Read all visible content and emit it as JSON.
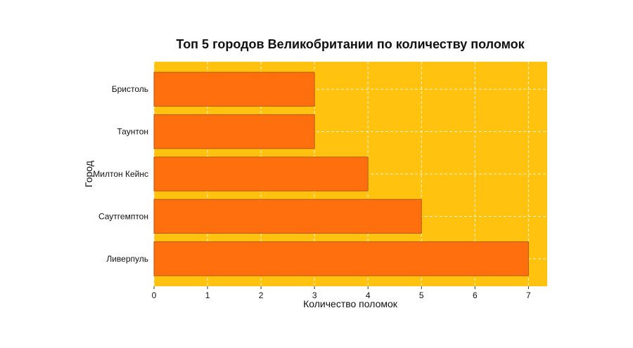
{
  "chart_data": {
    "type": "bar",
    "orientation": "horizontal",
    "title": "Топ 5 городов Великобритании по количеству поломок",
    "xlabel": "Количество поломок",
    "ylabel": "Город",
    "categories": [
      "Бристоль",
      "Таунтон",
      "Милтон Кейнс",
      "Саутгемптон",
      "Ливерпуль"
    ],
    "values": [
      3,
      3,
      4,
      5,
      7
    ],
    "x_ticks": [
      "0",
      "1",
      "2",
      "3",
      "4",
      "5",
      "6",
      "7"
    ],
    "xlim": [
      0,
      7.35
    ],
    "grid": true,
    "legend": "none",
    "colors": {
      "background": "#ffc20e",
      "bar_fill": "#ff6f0e",
      "bar_edge": "#b8570c",
      "grid": "#ffffff"
    }
  }
}
